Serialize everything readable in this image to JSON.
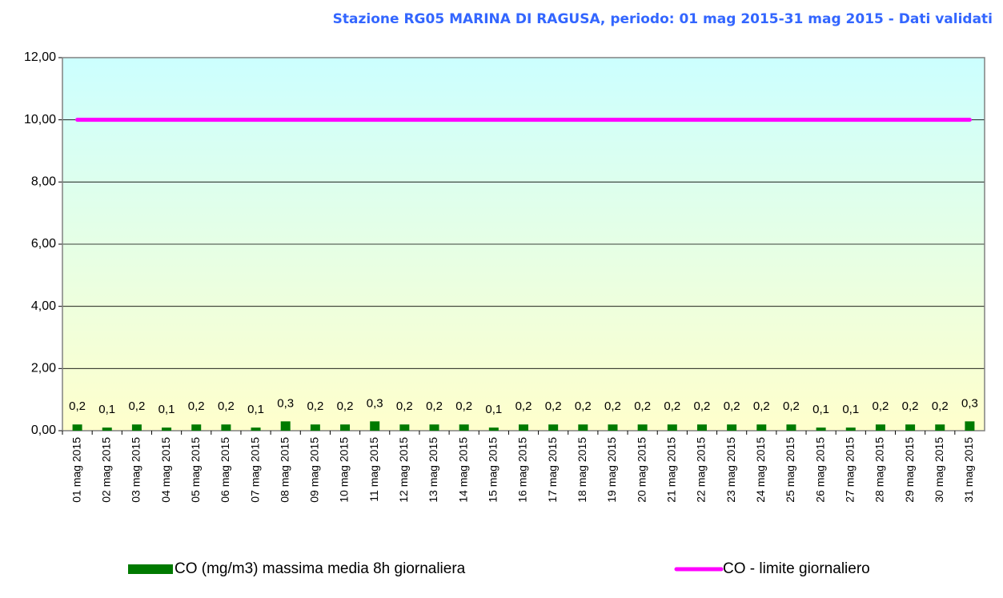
{
  "chart_data": {
    "type": "bar",
    "title": "Stazione RG05 MARINA DI RAGUSA, periodo: 01 mag 2015-31 mag 2015 - Dati validati",
    "categories": [
      "01 mag 2015",
      "02 mag 2015",
      "03 mag 2015",
      "04 mag 2015",
      "05 mag 2015",
      "06 mag 2015",
      "07 mag 2015",
      "08 mag 2015",
      "09 mag 2015",
      "10 mag 2015",
      "11 mag 2015",
      "12 mag 2015",
      "13 mag 2015",
      "14 mag 2015",
      "15 mag 2015",
      "16 mag 2015",
      "17 mag 2015",
      "18 mag 2015",
      "19 mag 2015",
      "20 mag 2015",
      "21 mag 2015",
      "22 mag 2015",
      "23 mag 2015",
      "24 mag 2015",
      "25 mag 2015",
      "26 mag 2015",
      "27 mag 2015",
      "28 mag 2015",
      "29 mag 2015",
      "30 mag 2015",
      "31 mag 2015"
    ],
    "series": [
      {
        "name": "CO (mg/m3) massima media 8h giornaliera",
        "type": "bar",
        "color": "#007a00",
        "values": [
          0.2,
          0.1,
          0.2,
          0.1,
          0.2,
          0.2,
          0.1,
          0.3,
          0.2,
          0.2,
          0.3,
          0.2,
          0.2,
          0.2,
          0.1,
          0.2,
          0.2,
          0.2,
          0.2,
          0.2,
          0.2,
          0.2,
          0.2,
          0.2,
          0.2,
          0.1,
          0.1,
          0.2,
          0.2,
          0.2,
          0.3
        ],
        "value_labels": [
          "0,2",
          "0,1",
          "0,2",
          "0,1",
          "0,2",
          "0,2",
          "0,1",
          "0,3",
          "0,2",
          "0,2",
          "0,3",
          "0,2",
          "0,2",
          "0,2",
          "0,1",
          "0,2",
          "0,2",
          "0,2",
          "0,2",
          "0,2",
          "0,2",
          "0,2",
          "0,2",
          "0,2",
          "0,2",
          "0,1",
          "0,1",
          "0,2",
          "0,2",
          "0,2",
          "0,3"
        ]
      },
      {
        "name": "CO - limite giornaliero",
        "type": "line",
        "color": "#ff00ff",
        "values": [
          10,
          10,
          10,
          10,
          10,
          10,
          10,
          10,
          10,
          10,
          10,
          10,
          10,
          10,
          10,
          10,
          10,
          10,
          10,
          10,
          10,
          10,
          10,
          10,
          10,
          10,
          10,
          10,
          10,
          10,
          10
        ]
      }
    ],
    "ylim": [
      0,
      12
    ],
    "yticks": [
      {
        "value": 0,
        "label": "0,00"
      },
      {
        "value": 2,
        "label": "2,00"
      },
      {
        "value": 4,
        "label": "4,00"
      },
      {
        "value": 6,
        "label": "6,00"
      },
      {
        "value": 8,
        "label": "8,00"
      },
      {
        "value": 10,
        "label": "10,00"
      },
      {
        "value": 12,
        "label": "12,00"
      }
    ],
    "grid": true
  }
}
